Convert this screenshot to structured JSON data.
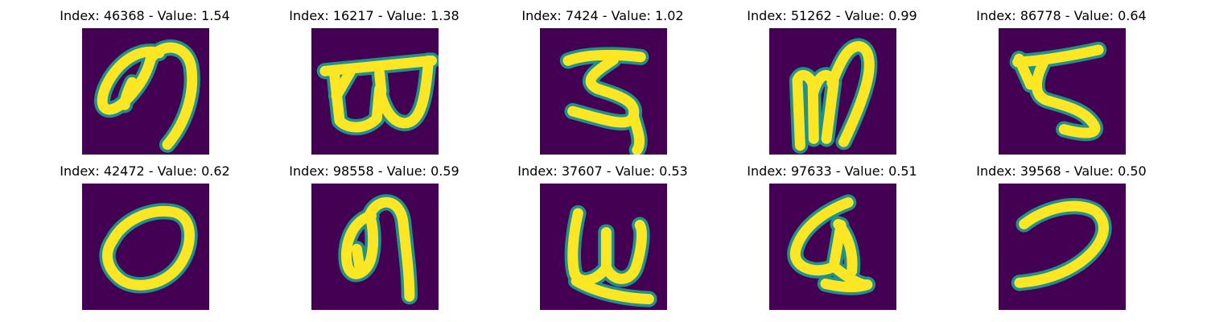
{
  "colors": {
    "background": "#440154",
    "stroke_outer": "#21918c",
    "stroke_core": "#fde725",
    "page": "#ffffff"
  },
  "panels": [
    {
      "title": "Index: 46368 - Value: 1.54",
      "glyph": "handwritten-character-46368"
    },
    {
      "title": "Index: 16217 - Value: 1.38",
      "glyph": "handwritten-character-16217"
    },
    {
      "title": "Index: 7424 - Value: 1.02",
      "glyph": "handwritten-character-7424"
    },
    {
      "title": "Index: 51262 - Value: 0.99",
      "glyph": "handwritten-character-51262"
    },
    {
      "title": "Index: 86778 - Value: 0.64",
      "glyph": "handwritten-character-86778"
    },
    {
      "title": "Index: 42472 - Value: 0.62",
      "glyph": "handwritten-character-42472"
    },
    {
      "title": "Index: 98558 - Value: 0.59",
      "glyph": "handwritten-character-98558"
    },
    {
      "title": "Index: 37607 - Value: 0.53",
      "glyph": "handwritten-character-37607"
    },
    {
      "title": "Index: 97633 - Value: 0.51",
      "glyph": "handwritten-character-97633"
    },
    {
      "title": "Index: 39568 - Value: 0.50",
      "glyph": "handwritten-character-39568"
    }
  ]
}
